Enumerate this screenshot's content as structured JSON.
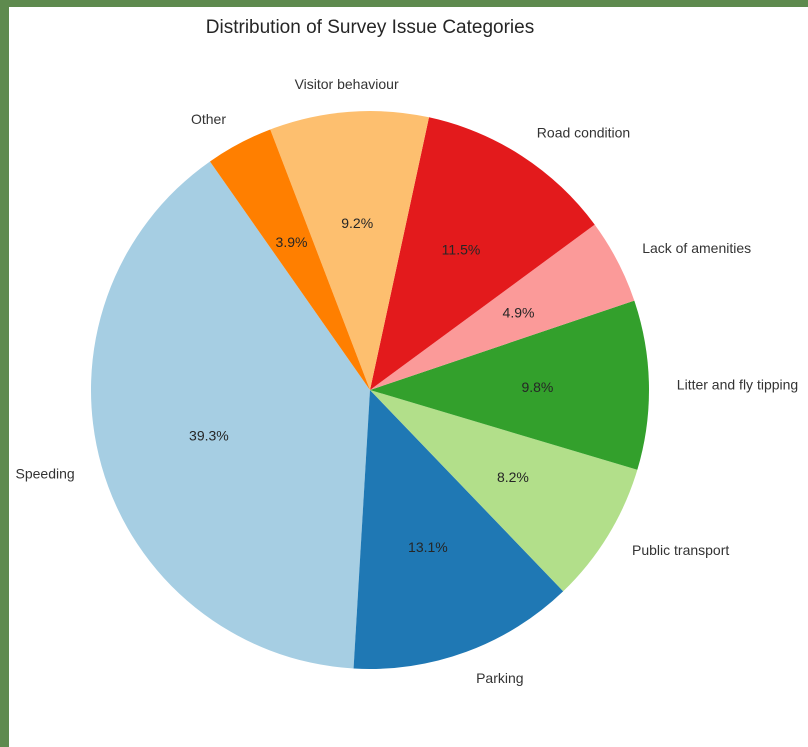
{
  "chart_data": {
    "type": "pie",
    "title": "Distribution of Survey Issue Categories",
    "slices": [
      {
        "label": "Speeding",
        "value": 39.3,
        "pct_label": "39.3%",
        "color": "#a6cee3"
      },
      {
        "label": "Parking",
        "value": 13.1,
        "pct_label": "13.1%",
        "color": "#1f78b4"
      },
      {
        "label": "Public transport",
        "value": 8.2,
        "pct_label": "8.2%",
        "color": "#b2df8a"
      },
      {
        "label": "Litter and fly tipping",
        "value": 9.8,
        "pct_label": "9.8%",
        "color": "#33a02c"
      },
      {
        "label": "Lack of amenities",
        "value": 4.9,
        "pct_label": "4.9%",
        "color": "#fb9a99"
      },
      {
        "label": "Road condition",
        "value": 11.5,
        "pct_label": "11.5%",
        "color": "#e31a1c"
      },
      {
        "label": "Visitor behaviour",
        "value": 9.2,
        "pct_label": "9.2%",
        "color": "#fdbf6f"
      },
      {
        "label": "Other",
        "value": 3.9,
        "pct_label": "3.9%",
        "color": "#ff7f00"
      }
    ]
  }
}
